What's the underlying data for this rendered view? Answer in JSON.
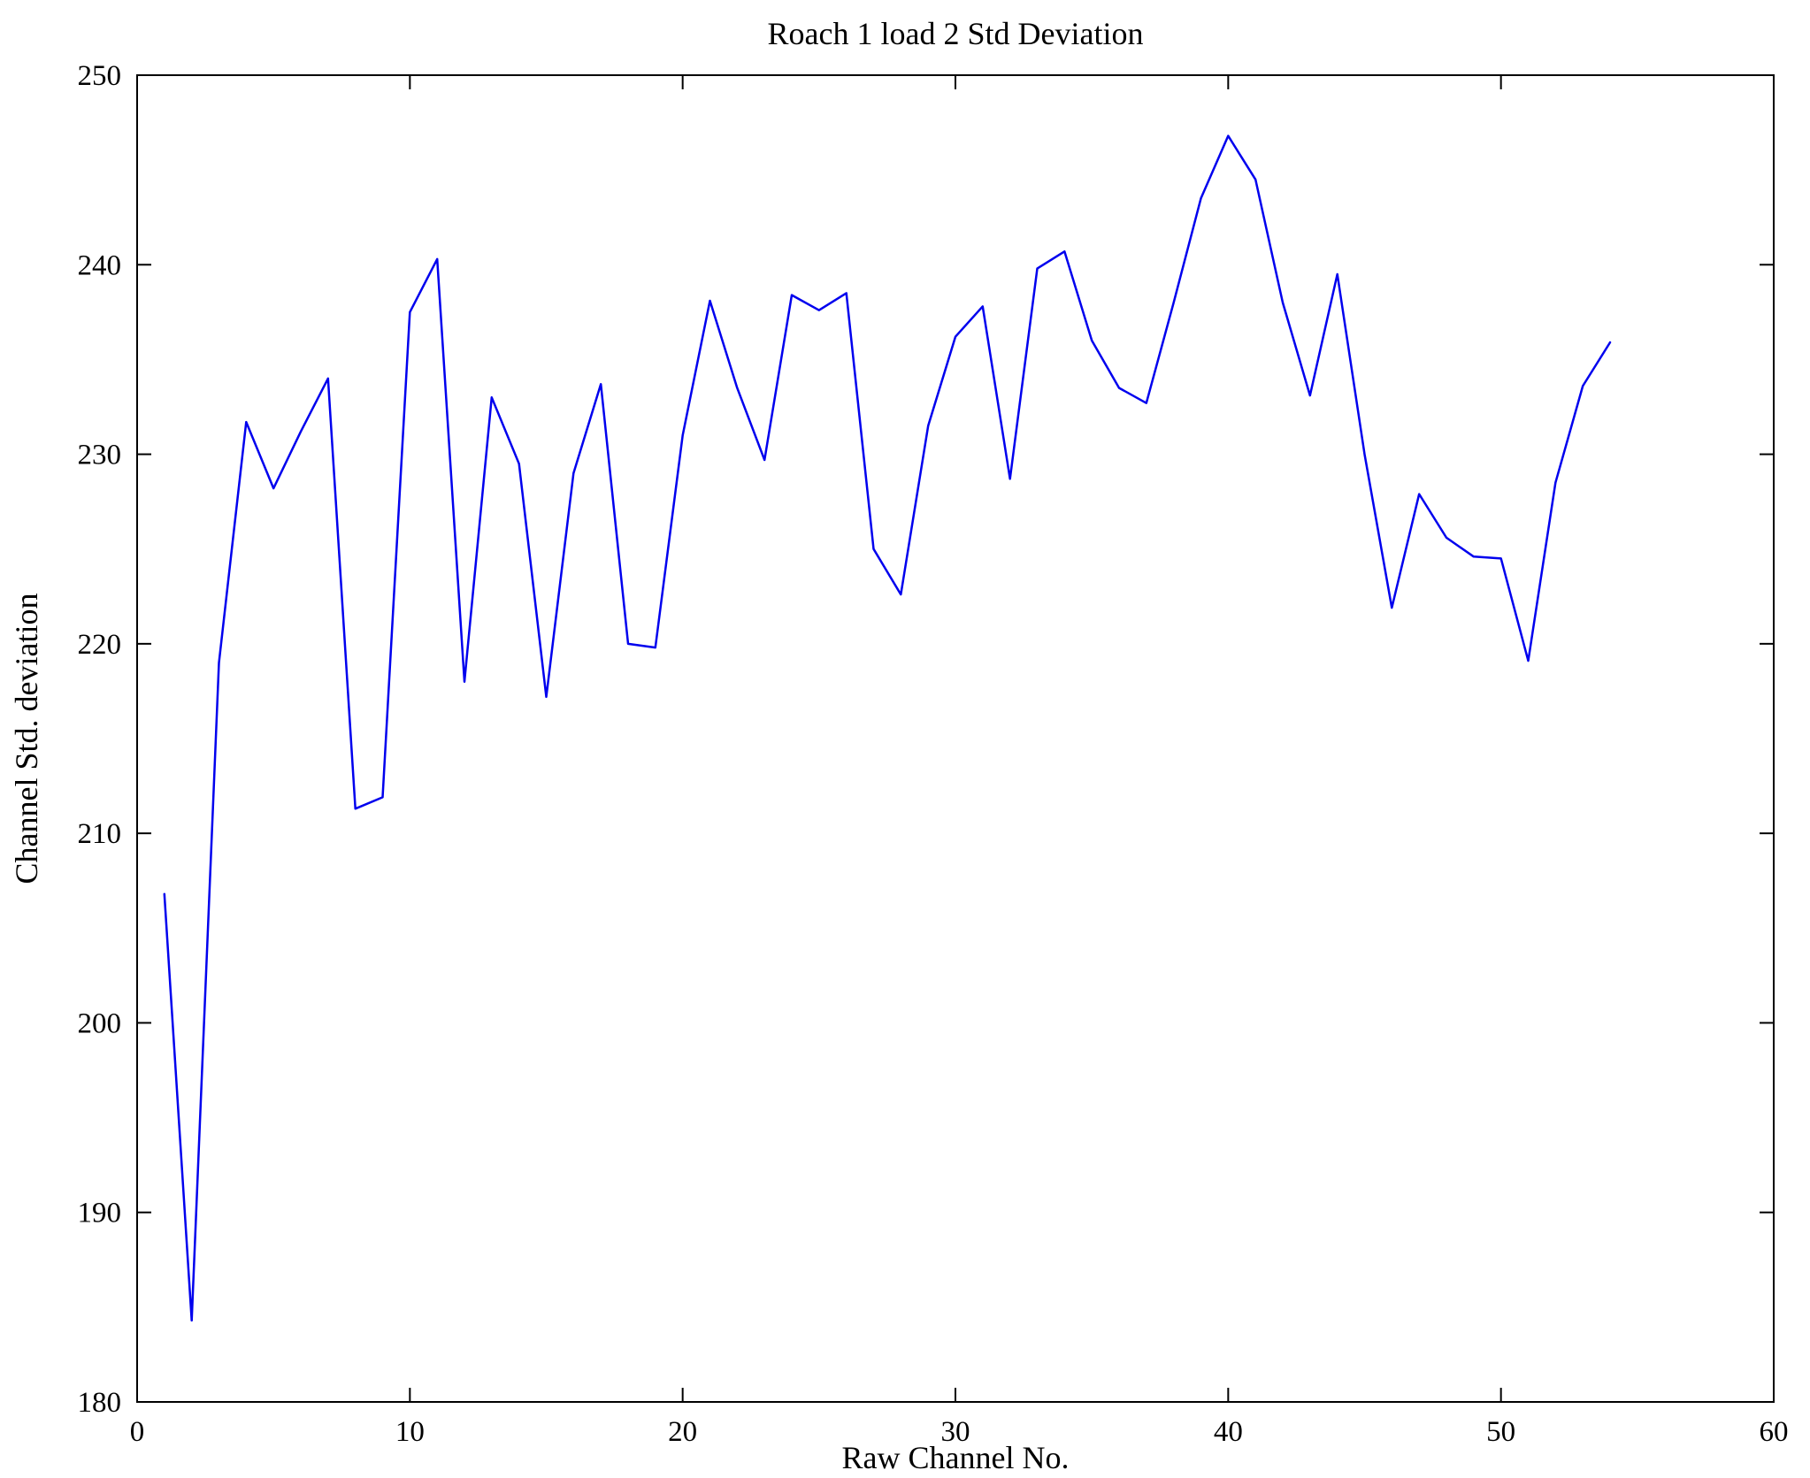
{
  "figure": {
    "background": "#ffffff"
  },
  "chart_data": {
    "type": "line",
    "title": "Roach 1 load 2 Std Deviation",
    "xlabel": "Raw Channel No.",
    "ylabel": "Channel Std. deviation",
    "xlim": [
      0,
      60
    ],
    "ylim": [
      180,
      250
    ],
    "xticks": [
      0,
      10,
      20,
      30,
      40,
      50,
      60
    ],
    "yticks": [
      180,
      190,
      200,
      210,
      220,
      230,
      240,
      250
    ],
    "grid": "off",
    "legend": "none",
    "line_color": "#0000ee",
    "axis_color": "#000000",
    "x": [
      1,
      2,
      3,
      4,
      5,
      6,
      7,
      8,
      9,
      10,
      11,
      12,
      13,
      14,
      15,
      16,
      17,
      18,
      19,
      20,
      21,
      22,
      23,
      24,
      25,
      26,
      27,
      28,
      29,
      30,
      31,
      32,
      33,
      34,
      35,
      36,
      37,
      38,
      39,
      40,
      41,
      42,
      43,
      44,
      45,
      46,
      47,
      48,
      49,
      50,
      51,
      52,
      53,
      54
    ],
    "values": [
      206.8,
      184.3,
      219.0,
      231.7,
      228.2,
      231.2,
      234.0,
      211.3,
      211.9,
      237.5,
      240.3,
      218.0,
      233.0,
      229.5,
      217.2,
      229.0,
      233.7,
      220.0,
      219.8,
      231.0,
      238.1,
      233.5,
      229.7,
      238.4,
      237.6,
      238.5,
      225.0,
      222.6,
      231.5,
      236.2,
      237.8,
      228.7,
      239.8,
      240.7,
      236.0,
      233.5,
      232.7,
      238.0,
      243.5,
      246.8,
      244.5,
      238.0,
      233.1,
      239.5,
      230.0,
      221.9,
      227.9,
      225.6,
      224.6,
      224.5,
      219.1,
      228.5,
      233.6,
      235.9
    ]
  }
}
